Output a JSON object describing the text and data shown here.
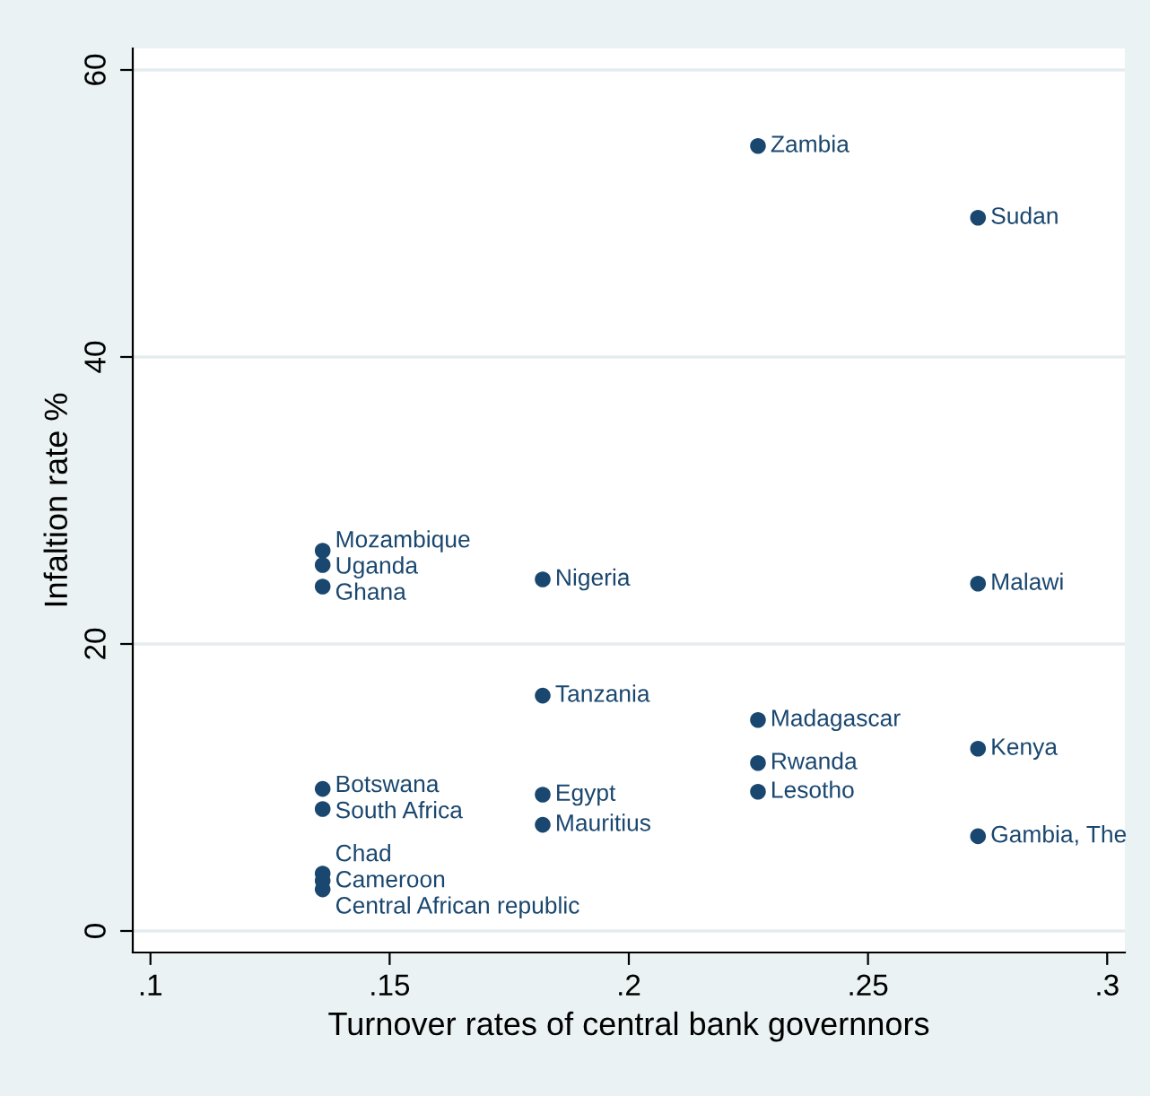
{
  "chart_data": {
    "type": "scatter",
    "xlabel": "Turnover rates of central bank governnors",
    "ylabel": "Infaltion rate %",
    "x": [
      0.227,
      0.273,
      0.136,
      0.136,
      0.136,
      0.182,
      0.273,
      0.182,
      0.227,
      0.273,
      0.227,
      0.227,
      0.136,
      0.182,
      0.136,
      0.182,
      0.273,
      0.136,
      0.136,
      0.136
    ],
    "series": [
      {
        "color": "#1a476f",
        "values": [
          54.7,
          49.7,
          26.5,
          25.5,
          24.0,
          24.5,
          24.2,
          16.4,
          14.7,
          12.7,
          11.7,
          9.7,
          9.9,
          9.5,
          8.5,
          7.4,
          6.6,
          4.0,
          3.5,
          2.9
        ]
      }
    ],
    "annotations": [
      {
        "text": "Zambia",
        "x": 0.227,
        "y": 54.7
      },
      {
        "text": "Sudan",
        "x": 0.273,
        "y": 49.7
      },
      {
        "text": "Mozambique",
        "x": 0.136,
        "y": 26.5
      },
      {
        "text": "Uganda",
        "x": 0.136,
        "y": 25.5
      },
      {
        "text": "Ghana",
        "x": 0.136,
        "y": 24.0
      },
      {
        "text": "Nigeria",
        "x": 0.182,
        "y": 24.5
      },
      {
        "text": "Malawi",
        "x": 0.273,
        "y": 24.2
      },
      {
        "text": "Tanzania",
        "x": 0.182,
        "y": 16.4
      },
      {
        "text": "Madagascar",
        "x": 0.227,
        "y": 14.7
      },
      {
        "text": "Kenya",
        "x": 0.273,
        "y": 12.7
      },
      {
        "text": "Rwanda",
        "x": 0.227,
        "y": 11.7
      },
      {
        "text": "Lesotho",
        "x": 0.227,
        "y": 9.7
      },
      {
        "text": "Botswana",
        "x": 0.136,
        "y": 9.9
      },
      {
        "text": "Egypt",
        "x": 0.182,
        "y": 9.5
      },
      {
        "text": "South Africa",
        "x": 0.136,
        "y": 8.5
      },
      {
        "text": "Mauritius",
        "x": 0.182,
        "y": 7.4
      },
      {
        "text": "Gambia, The",
        "x": 0.273,
        "y": 6.6
      },
      {
        "text": "Chad",
        "x": 0.136,
        "y": 4.0
      },
      {
        "text": "Cameroon",
        "x": 0.136,
        "y": 3.5
      },
      {
        "text": "Central African republic",
        "x": 0.136,
        "y": 2.9
      }
    ],
    "xlim": [
      0.0963,
      0.3037
    ],
    "ylim": [
      -1.5,
      61.5
    ],
    "xticks": [
      {
        "value": 0.1,
        "label": ".1"
      },
      {
        "value": 0.15,
        "label": ".15"
      },
      {
        "value": 0.2,
        "label": ".2"
      },
      {
        "value": 0.25,
        "label": ".25"
      },
      {
        "value": 0.3,
        "label": ".3"
      }
    ],
    "yticks": [
      0,
      20,
      40,
      60
    ],
    "grid": "y",
    "marker": "circle",
    "legend": false
  }
}
